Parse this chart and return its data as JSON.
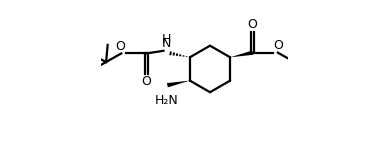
{
  "bg_color": "#ffffff",
  "line_color": "#000000",
  "line_width": 1.6,
  "fig_width": 3.89,
  "fig_height": 1.41,
  "dpi": 100,
  "xlim": [
    -1.5,
    10.5
  ],
  "ylim": [
    -1.8,
    7.2
  ]
}
